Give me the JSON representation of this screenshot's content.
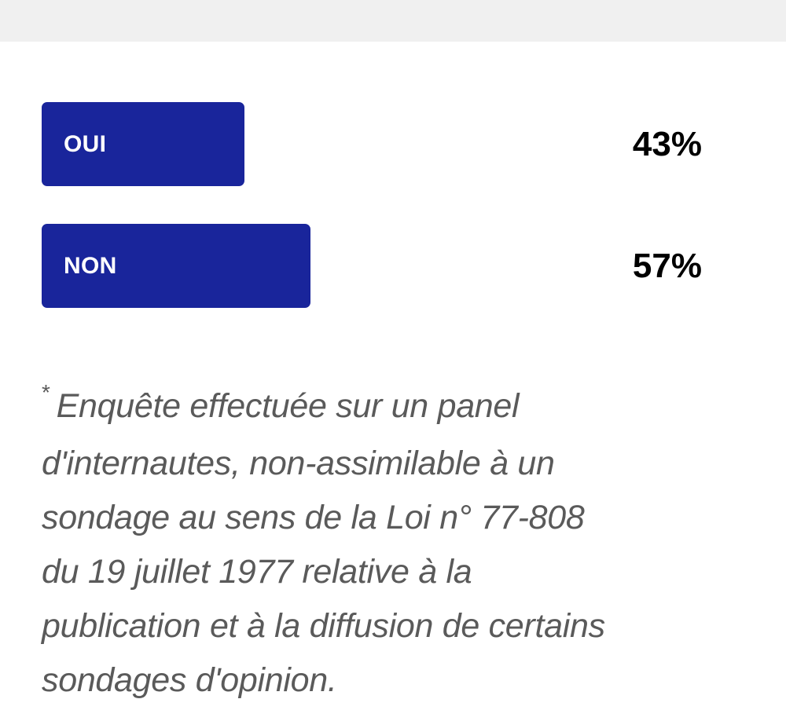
{
  "poll": {
    "options": [
      {
        "label": "OUI",
        "percent_text": "43%",
        "percent": 43,
        "color": "#19259b"
      },
      {
        "label": "NON",
        "percent_text": "57%",
        "percent": 57,
        "color": "#19259b"
      }
    ]
  },
  "footnote": {
    "marker": "*",
    "text": "Enquête effectuée sur un panel d'internautes, non-assimilable à un sondage au sens de la Loi n° 77-808 du 19 juillet 1977 relative à la publication et à la diffusion de certains sondages d'opinion."
  }
}
